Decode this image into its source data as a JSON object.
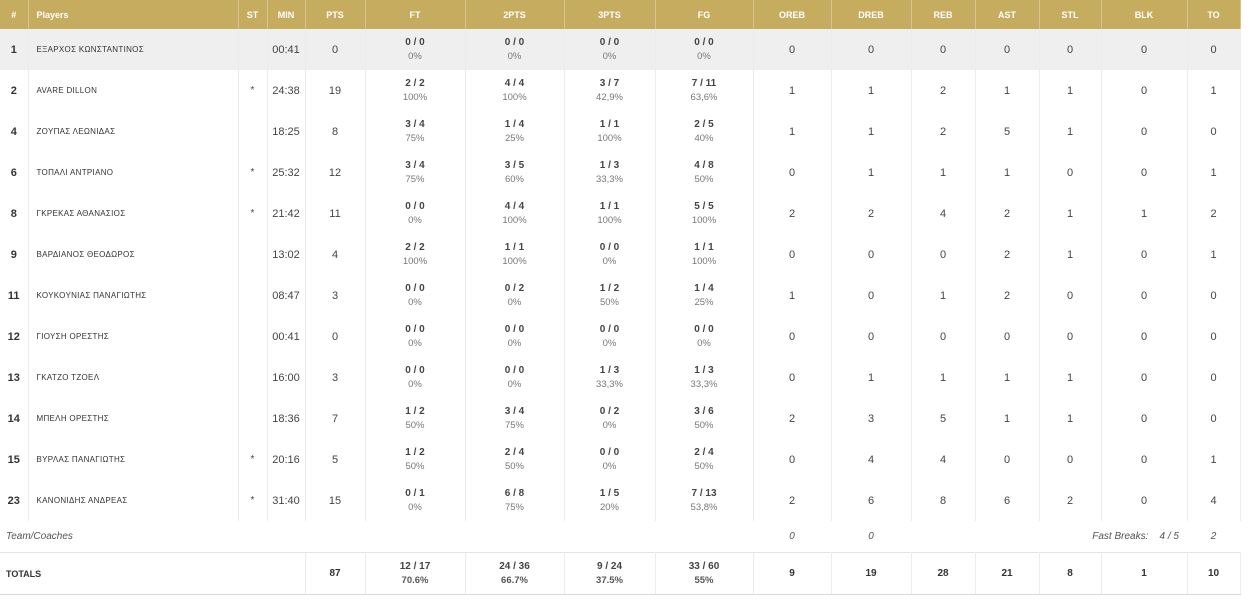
{
  "headers": {
    "num": "#",
    "players": "Players",
    "st": "ST",
    "min": "MIN",
    "pts": "PTS",
    "ft": "FT",
    "p2": "2PTS",
    "p3": "3PTS",
    "fg": "FG",
    "oreb": "OREB",
    "dreb": "DREB",
    "reb": "REB",
    "ast": "AST",
    "stl": "STL",
    "blk": "BLK",
    "to": "TO"
  },
  "players": [
    {
      "num": "1",
      "name": "ΕΞΑΡΧΟΣ ΚΩΝΣΤΑΝΤΙΝΟΣ",
      "st": "",
      "min": "00:41",
      "pts": "0",
      "ft": "0 / 0",
      "ft_pct": "0%",
      "p2": "0 / 0",
      "p2_pct": "0%",
      "p3": "0 / 0",
      "p3_pct": "0%",
      "fg": "0 / 0",
      "fg_pct": "0%",
      "oreb": "0",
      "dreb": "0",
      "reb": "0",
      "ast": "0",
      "stl": "0",
      "blk": "0",
      "to": "0"
    },
    {
      "num": "2",
      "name": "AVARE DILLON",
      "st": "*",
      "min": "24:38",
      "pts": "19",
      "ft": "2 / 2",
      "ft_pct": "100%",
      "p2": "4 / 4",
      "p2_pct": "100%",
      "p3": "3 / 7",
      "p3_pct": "42,9%",
      "fg": "7 / 11",
      "fg_pct": "63,6%",
      "oreb": "1",
      "dreb": "1",
      "reb": "2",
      "ast": "1",
      "stl": "1",
      "blk": "0",
      "to": "1"
    },
    {
      "num": "4",
      "name": "ΖΟΥΠΑΣ ΛΕΩΝΙΔΑΣ",
      "st": "",
      "min": "18:25",
      "pts": "8",
      "ft": "3 / 4",
      "ft_pct": "75%",
      "p2": "1 / 4",
      "p2_pct": "25%",
      "p3": "1 / 1",
      "p3_pct": "100%",
      "fg": "2 / 5",
      "fg_pct": "40%",
      "oreb": "1",
      "dreb": "1",
      "reb": "2",
      "ast": "5",
      "stl": "1",
      "blk": "0",
      "to": "0"
    },
    {
      "num": "6",
      "name": "ΤΟΠΑΛΙ ΑΝΤΡΙΑΝΟ",
      "st": "*",
      "min": "25:32",
      "pts": "12",
      "ft": "3 / 4",
      "ft_pct": "75%",
      "p2": "3 / 5",
      "p2_pct": "60%",
      "p3": "1 / 3",
      "p3_pct": "33,3%",
      "fg": "4 / 8",
      "fg_pct": "50%",
      "oreb": "0",
      "dreb": "1",
      "reb": "1",
      "ast": "1",
      "stl": "0",
      "blk": "0",
      "to": "1"
    },
    {
      "num": "8",
      "name": "ΓΚΡΕΚΑΣ ΑΘΑΝΑΣΙΟΣ",
      "st": "*",
      "min": "21:42",
      "pts": "11",
      "ft": "0 / 0",
      "ft_pct": "0%",
      "p2": "4 / 4",
      "p2_pct": "100%",
      "p3": "1 / 1",
      "p3_pct": "100%",
      "fg": "5 / 5",
      "fg_pct": "100%",
      "oreb": "2",
      "dreb": "2",
      "reb": "4",
      "ast": "2",
      "stl": "1",
      "blk": "1",
      "to": "2"
    },
    {
      "num": "9",
      "name": "ΒΑΡΔΙΑΝΟΣ ΘΕΟΔΩΡΟΣ",
      "st": "",
      "min": "13:02",
      "pts": "4",
      "ft": "2 / 2",
      "ft_pct": "100%",
      "p2": "1 / 1",
      "p2_pct": "100%",
      "p3": "0 / 0",
      "p3_pct": "0%",
      "fg": "1 / 1",
      "fg_pct": "100%",
      "oreb": "0",
      "dreb": "0",
      "reb": "0",
      "ast": "2",
      "stl": "1",
      "blk": "0",
      "to": "1"
    },
    {
      "num": "11",
      "name": "ΚΟΥΚΟΥΝΙΑΣ ΠΑΝΑΓΙΩΤΗΣ",
      "st": "",
      "min": "08:47",
      "pts": "3",
      "ft": "0 / 0",
      "ft_pct": "0%",
      "p2": "0 / 2",
      "p2_pct": "0%",
      "p3": "1 / 2",
      "p3_pct": "50%",
      "fg": "1 / 4",
      "fg_pct": "25%",
      "oreb": "1",
      "dreb": "0",
      "reb": "1",
      "ast": "2",
      "stl": "0",
      "blk": "0",
      "to": "0"
    },
    {
      "num": "12",
      "name": "ΓΙΟΥΣΗ ΟΡΕΣΤΗΣ",
      "st": "",
      "min": "00:41",
      "pts": "0",
      "ft": "0 / 0",
      "ft_pct": "0%",
      "p2": "0 / 0",
      "p2_pct": "0%",
      "p3": "0 / 0",
      "p3_pct": "0%",
      "fg": "0 / 0",
      "fg_pct": "0%",
      "oreb": "0",
      "dreb": "0",
      "reb": "0",
      "ast": "0",
      "stl": "0",
      "blk": "0",
      "to": "0"
    },
    {
      "num": "13",
      "name": "ΓΚΑΤΖΟ ΤΖΟΕΛ",
      "st": "",
      "min": "16:00",
      "pts": "3",
      "ft": "0 / 0",
      "ft_pct": "0%",
      "p2": "0 / 0",
      "p2_pct": "0%",
      "p3": "1 / 3",
      "p3_pct": "33,3%",
      "fg": "1 / 3",
      "fg_pct": "33,3%",
      "oreb": "0",
      "dreb": "1",
      "reb": "1",
      "ast": "1",
      "stl": "1",
      "blk": "0",
      "to": "0"
    },
    {
      "num": "14",
      "name": "ΜΠΕΛΗ ΟΡΕΣΤΗΣ",
      "st": "",
      "min": "18:36",
      "pts": "7",
      "ft": "1 / 2",
      "ft_pct": "50%",
      "p2": "3 / 4",
      "p2_pct": "75%",
      "p3": "0 / 2",
      "p3_pct": "0%",
      "fg": "3 / 6",
      "fg_pct": "50%",
      "oreb": "2",
      "dreb": "3",
      "reb": "5",
      "ast": "1",
      "stl": "1",
      "blk": "0",
      "to": "0"
    },
    {
      "num": "15",
      "name": "ΒΥΡΛΑΣ ΠΑΝΑΓΙΩΤΗΣ",
      "st": "*",
      "min": "20:16",
      "pts": "5",
      "ft": "1 / 2",
      "ft_pct": "50%",
      "p2": "2 / 4",
      "p2_pct": "50%",
      "p3": "0 / 0",
      "p3_pct": "0%",
      "fg": "2 / 4",
      "fg_pct": "50%",
      "oreb": "0",
      "dreb": "4",
      "reb": "4",
      "ast": "0",
      "stl": "0",
      "blk": "0",
      "to": "1"
    },
    {
      "num": "23",
      "name": "ΚΑΝΟΝΙΔΗΣ ΑΝΔΡΕΑΣ",
      "st": "*",
      "min": "31:40",
      "pts": "15",
      "ft": "0 / 1",
      "ft_pct": "0%",
      "p2": "6 / 8",
      "p2_pct": "75%",
      "p3": "1 / 5",
      "p3_pct": "20%",
      "fg": "7 / 13",
      "fg_pct": "53,8%",
      "oreb": "2",
      "dreb": "6",
      "reb": "8",
      "ast": "6",
      "stl": "2",
      "blk": "0",
      "to": "4"
    }
  ],
  "team": {
    "label": "Team/Coaches",
    "oreb": "0",
    "dreb": "0",
    "fast_breaks_label": "Fast Breaks:",
    "fast_breaks_value": "4 / 5",
    "to": "2"
  },
  "totals": {
    "label": "TOTALS",
    "pts": "87",
    "ft": "12 / 17",
    "ft_pct": "70.6%",
    "p2": "24 / 36",
    "p2_pct": "66.7%",
    "p3": "9 / 24",
    "p3_pct": "37.5%",
    "fg": "33 / 60",
    "fg_pct": "55%",
    "oreb": "9",
    "dreb": "19",
    "reb": "28",
    "ast": "21",
    "stl": "8",
    "blk": "1",
    "to": "10"
  }
}
